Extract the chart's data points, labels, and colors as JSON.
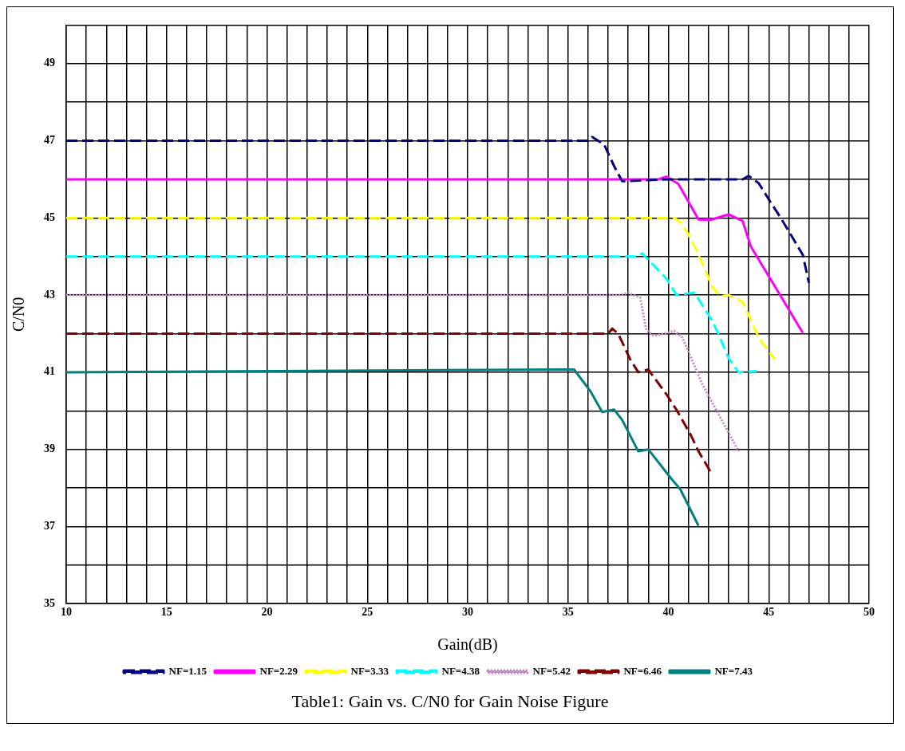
{
  "chart_data": {
    "type": "line",
    "title": "Table1: Gain vs. C/N0 for Gain Noise Figure",
    "xlabel": "Gain(dB)",
    "ylabel": "C/N0",
    "xlim": [
      10,
      50
    ],
    "ylim": [
      35,
      50
    ],
    "xticks": [
      10,
      {
        "value": 11,
        "label": null
      },
      {
        "value": 12,
        "label": null
      },
      {
        "value": 13,
        "label": null
      },
      {
        "value": 14,
        "label": null
      },
      15,
      {
        "value": 16,
        "label": null
      },
      {
        "value": 17,
        "label": null
      },
      {
        "value": 18,
        "label": null
      },
      {
        "value": 19,
        "label": null
      },
      20,
      {
        "value": 21,
        "label": null
      },
      {
        "value": 22,
        "label": null
      },
      {
        "value": 23,
        "label": null
      },
      {
        "value": 24,
        "label": null
      },
      25,
      {
        "value": 26,
        "label": null
      },
      {
        "value": 27,
        "label": null
      },
      {
        "value": 28,
        "label": null
      },
      {
        "value": 29,
        "label": null
      },
      30,
      {
        "value": 31,
        "label": null
      },
      {
        "value": 32,
        "label": null
      },
      {
        "value": 33,
        "label": null
      },
      {
        "value": 34,
        "label": null
      },
      35,
      {
        "value": 36,
        "label": null
      },
      {
        "value": 37,
        "label": null
      },
      {
        "value": 38,
        "label": null
      },
      {
        "value": 39,
        "label": null
      },
      40,
      {
        "value": 41,
        "label": null
      },
      {
        "value": 42,
        "label": null
      },
      {
        "value": 43,
        "label": null
      },
      {
        "value": 44,
        "label": null
      },
      45,
      {
        "value": 46,
        "label": null
      },
      {
        "value": 47,
        "label": null
      },
      {
        "value": 48,
        "label": null
      },
      {
        "value": 49,
        "label": null
      },
      50
    ],
    "yticks": [
      35,
      {
        "value": 36,
        "label": null
      },
      37,
      {
        "value": 38,
        "label": null
      },
      39,
      {
        "value": 40,
        "label": null
      },
      41,
      {
        "value": 42,
        "label": null
      },
      43,
      {
        "value": 44,
        "label": null
      },
      45,
      {
        "value": 46,
        "label": null
      },
      47,
      {
        "value": 48,
        "label": null
      },
      49,
      {
        "value": 50,
        "label": null
      }
    ],
    "grid": true,
    "legend": "bottom",
    "marker": "none",
    "series": [
      {
        "name": "NF=1.15",
        "color": "#000080",
        "line_style": "dashed",
        "x": [
          10,
          36.0,
          36.2,
          36.8,
          37.3,
          37.7,
          40.0,
          43.7,
          44.0,
          44.5,
          45.1,
          45.6,
          46.3,
          46.7,
          47.0
        ],
        "values": [
          47.0,
          47.0,
          47.1,
          46.9,
          46.34,
          45.95,
          46.0,
          46.0,
          46.09,
          45.9,
          45.4,
          45.0,
          44.39,
          44.04,
          43.32
        ]
      },
      {
        "name": "NF=2.29",
        "color": "#ff00ff",
        "line_style": "solid",
        "x": [
          10,
          39.5,
          39.9,
          40.5,
          41.5,
          42.1,
          43.0,
          43.7,
          44.1,
          46.7
        ],
        "values": [
          46.0,
          46.0,
          46.07,
          45.88,
          44.96,
          44.95,
          45.09,
          44.92,
          44.27,
          42.02
        ]
      },
      {
        "name": "NF=3.33",
        "color": "#ffff00",
        "line_style": "dashed",
        "x": [
          10,
          40.3,
          40.7,
          41.3,
          41.7,
          42.2,
          42.6,
          43.0,
          43.7,
          44.5,
          45.3
        ],
        "values": [
          45.0,
          45.0,
          44.85,
          44.27,
          43.81,
          43.2,
          42.97,
          43.0,
          42.82,
          41.9,
          41.33
        ]
      },
      {
        "name": "NF=4.38",
        "color": "#00ffff",
        "line_style": "dashed",
        "x": [
          10,
          38.5,
          38.7,
          39.9,
          40.4,
          41.3,
          42.2,
          42.5,
          43.0,
          43.5,
          44.4
        ],
        "values": [
          44.0,
          44.0,
          44.08,
          43.43,
          43.01,
          43.06,
          42.32,
          41.98,
          41.36,
          41.0,
          41.03
        ]
      },
      {
        "name": "NF=5.42",
        "color": "#cc88cc",
        "line_style": "dotted",
        "x": [
          10,
          37.6,
          38.0,
          38.6,
          38.9,
          39.3,
          40.3,
          40.7,
          41.7,
          43.5
        ],
        "values": [
          43.0,
          43.0,
          43.06,
          42.93,
          42.09,
          41.94,
          42.07,
          41.9,
          40.68,
          38.95
        ]
      },
      {
        "name": "NF=6.46",
        "color": "#800000",
        "line_style": "dashed",
        "x": [
          10,
          37.0,
          37.2,
          37.5,
          38.1,
          38.5,
          39.0,
          39.9,
          40.4,
          41.1,
          41.5,
          42.1
        ],
        "values": [
          42.0,
          42.0,
          42.13,
          42.0,
          41.33,
          41.0,
          41.07,
          40.43,
          40.03,
          39.39,
          38.95,
          38.42
        ]
      },
      {
        "name": "NF=7.43",
        "color": "#008080",
        "line_style": "solid",
        "x": [
          10,
          34.6,
          35.3,
          36.1,
          36.7,
          37.3,
          37.7,
          38.5,
          39.0,
          40.1,
          40.6,
          41.5
        ],
        "values": [
          41.0,
          41.07,
          41.07,
          40.52,
          39.97,
          40.03,
          39.76,
          38.95,
          39.0,
          38.27,
          37.96,
          37.02
        ]
      }
    ]
  }
}
